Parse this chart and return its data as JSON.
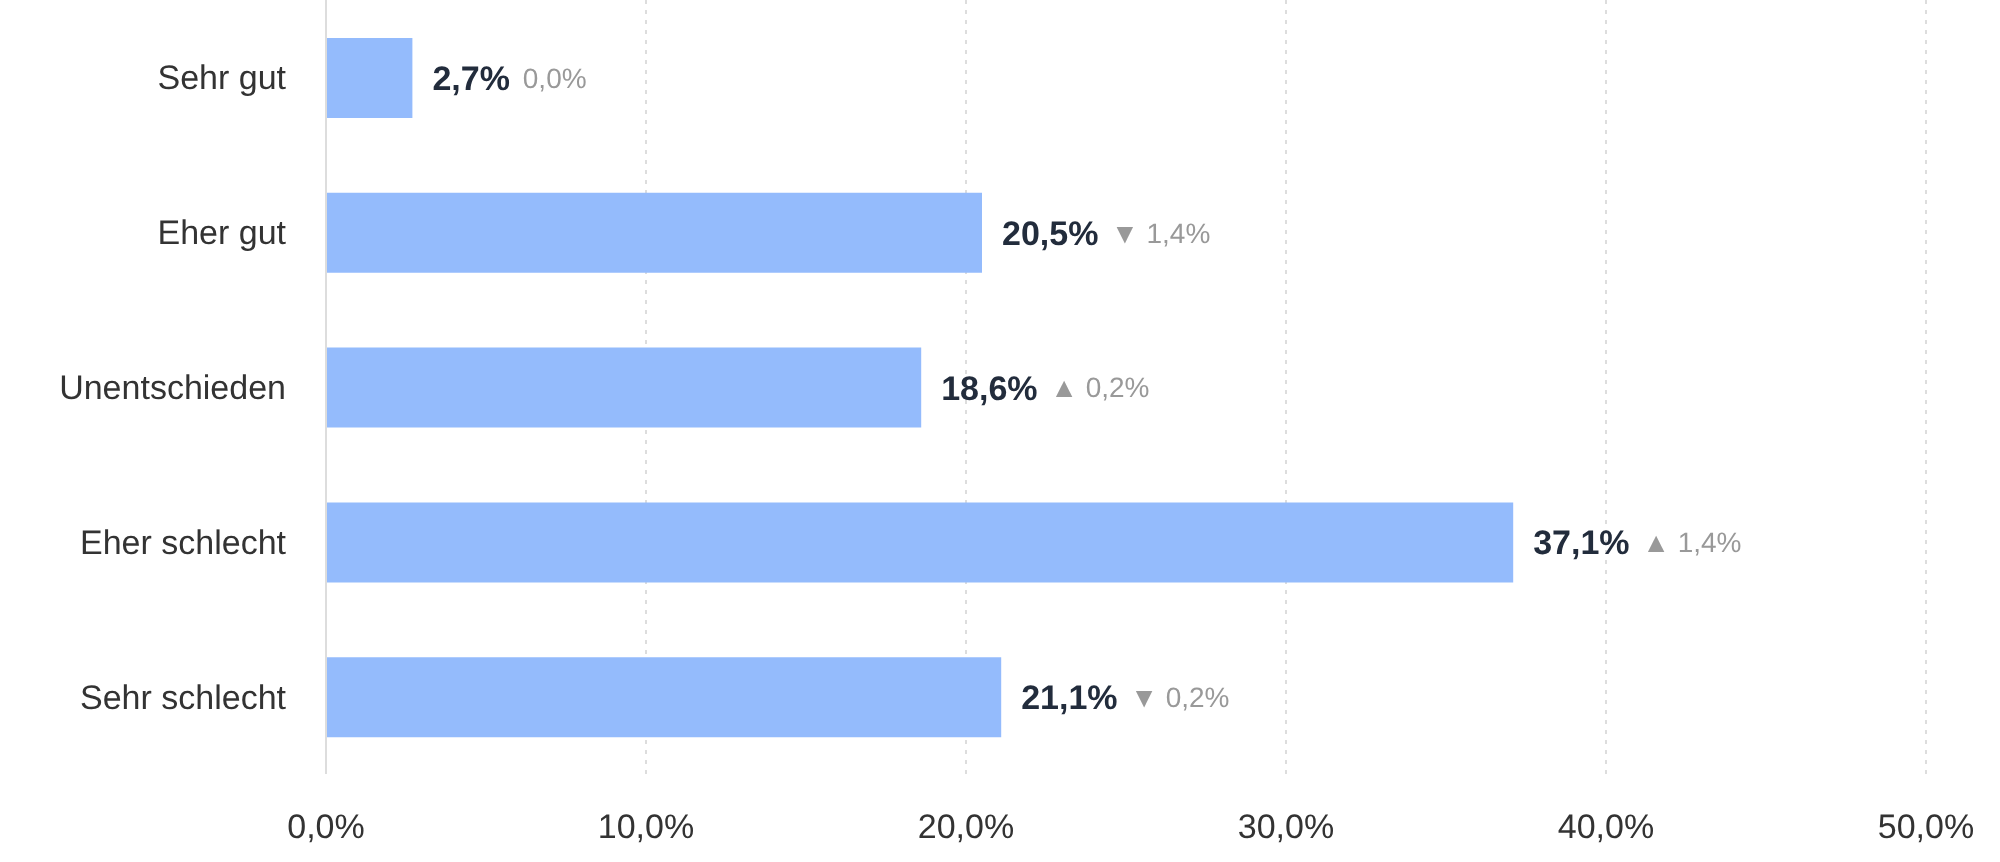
{
  "chart_data": {
    "type": "bar",
    "orientation": "horizontal",
    "categories": [
      "Sehr gut",
      "Eher gut",
      "Unentschieden",
      "Eher schlecht",
      "Sehr schlecht"
    ],
    "values": [
      2.7,
      20.5,
      18.6,
      37.1,
      21.1
    ],
    "color": "#94bbfc",
    "value_labels": [
      "2,7%",
      "20,5%",
      "18,6%",
      "37,1%",
      "21,1%"
    ],
    "annotations": [
      "0,0%",
      "▼ 1,4%",
      "▲ 0,2%",
      "▲ 1,4%",
      "▼ 0,2%"
    ],
    "xlim": [
      0,
      50
    ],
    "xticks": [
      {
        "value": 0,
        "label": "0,0%"
      },
      {
        "value": 10,
        "label": "10,0%"
      },
      {
        "value": 20,
        "label": "20,0%"
      },
      {
        "value": 30,
        "label": "30,0%"
      },
      {
        "value": 40,
        "label": "40,0%"
      },
      {
        "value": 50,
        "label": "50,0%"
      }
    ],
    "grid": "x"
  }
}
